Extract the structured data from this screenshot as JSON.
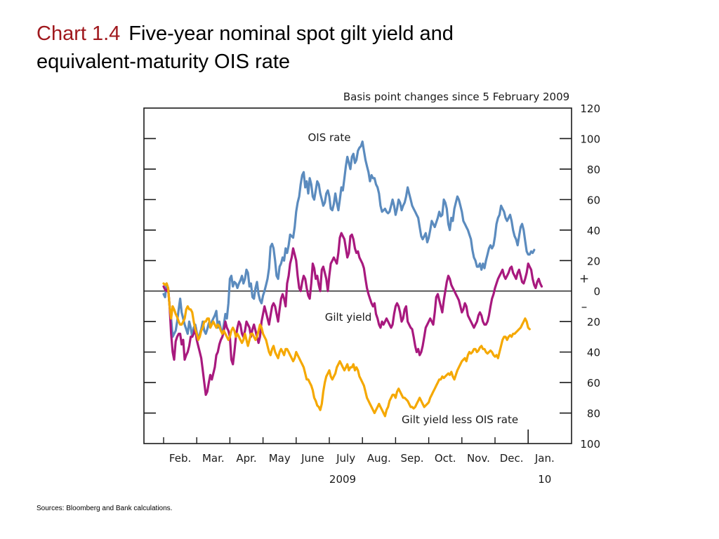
{
  "slide": {
    "chart_number": "Chart 1.4",
    "title_line1": "Five-year nominal spot gilt yield and",
    "title_line2": "equivalent-maturity OIS rate",
    "sources": "Sources:  Bloomberg and Bank calculations."
  },
  "colors": {
    "ois": "#5b8bbe",
    "gilt": "#a8197e",
    "spread": "#f5a800",
    "chart_number": "#a0191e"
  },
  "chart_data": {
    "type": "line",
    "units_label": "Basis point changes since 5 February 2009",
    "ylim": [
      -100,
      120
    ],
    "yticks": [
      120,
      100,
      80,
      60,
      40,
      20,
      0,
      -20,
      -40,
      -60,
      -80,
      -100
    ],
    "ytick_labels": [
      "120",
      "100",
      "80",
      "60",
      "40",
      "20",
      "0",
      "20",
      "40",
      "60",
      "80",
      "100"
    ],
    "sign_labels": {
      "plus": "+",
      "minus": "–"
    },
    "months": [
      "Feb.",
      "Mar.",
      "Apr.",
      "May",
      "June",
      "July",
      "Aug.",
      "Sep.",
      "Oct.",
      "Nov.",
      "Dec.",
      "Jan."
    ],
    "year_labels": [
      "2009",
      "10"
    ],
    "x_values": "trading day index; 0 = 5 February 2009, 22 days per month",
    "series": [
      {
        "name": "OIS rate",
        "key": "ois",
        "values": [
          -2,
          -4,
          5,
          2,
          -10,
          -18,
          -30,
          -28,
          -26,
          -20,
          -12,
          -5,
          -14,
          -18,
          -22,
          -25,
          -28,
          -20,
          -24,
          -30,
          -24,
          -22,
          -27,
          -32,
          -28,
          -25,
          -20,
          -26,
          -28,
          -25,
          -21,
          -24,
          -20,
          -18,
          -16,
          -13,
          -24,
          -20,
          -25,
          -28,
          -22,
          -15,
          -18,
          -8,
          8,
          10,
          3,
          6,
          5,
          2,
          5,
          7,
          10,
          5,
          8,
          14,
          12,
          3,
          5,
          -4,
          -5,
          2,
          6,
          -2,
          -6,
          -8,
          -3,
          0,
          4,
          8,
          15,
          29,
          31,
          28,
          20,
          10,
          8,
          16,
          18,
          22,
          20,
          28,
          25,
          30,
          37,
          36,
          35,
          42,
          52,
          58,
          62,
          70,
          76,
          78,
          68,
          72,
          64,
          74,
          70,
          62,
          60,
          66,
          72,
          70,
          64,
          60,
          56,
          58,
          64,
          66,
          62,
          54,
          53,
          57,
          64,
          58,
          53,
          60,
          68,
          66,
          74,
          82,
          88,
          84,
          80,
          88,
          90,
          84,
          86,
          92,
          94,
          95,
          98,
          92,
          86,
          82,
          78,
          72,
          76,
          74,
          74,
          70,
          68,
          64,
          56,
          52,
          53,
          54,
          52,
          51,
          52,
          56,
          60,
          56,
          50,
          54,
          60,
          58,
          53,
          56,
          58,
          62,
          68,
          64,
          60,
          56,
          54,
          52,
          50,
          48,
          42,
          36,
          34,
          36,
          38,
          32,
          35,
          40,
          46,
          44,
          42,
          45,
          48,
          52,
          49,
          50,
          60,
          58,
          54,
          44,
          40,
          48,
          46,
          54,
          58,
          62,
          60,
          56,
          52,
          46,
          44,
          42,
          40,
          37,
          34,
          27,
          22,
          20,
          16,
          16,
          18,
          14,
          18,
          15,
          20,
          24,
          28,
          30,
          28,
          30,
          36,
          44,
          48,
          50,
          56,
          54,
          52,
          48,
          46,
          48,
          50,
          46,
          40,
          36,
          34,
          30,
          36,
          42,
          44,
          40,
          33,
          26,
          24,
          24,
          26,
          25,
          27
        ]
      },
      {
        "name": "Gilt yield",
        "key": "gilt",
        "values": [
          3,
          1,
          0,
          2,
          -10,
          -28,
          -40,
          -45,
          -33,
          -30,
          -28,
          -28,
          -35,
          -32,
          -45,
          -42,
          -40,
          -36,
          -30,
          -30,
          -28,
          -24,
          -32,
          -36,
          -40,
          -44,
          -52,
          -60,
          -68,
          -66,
          -60,
          -55,
          -58,
          -54,
          -50,
          -42,
          -40,
          -35,
          -32,
          -30,
          -26,
          -20,
          -24,
          -26,
          -30,
          -45,
          -48,
          -40,
          -30,
          -24,
          -20,
          -22,
          -28,
          -30,
          -26,
          -20,
          -22,
          -24,
          -30,
          -25,
          -22,
          -26,
          -30,
          -34,
          -30,
          -20,
          -15,
          -10,
          -14,
          -18,
          -22,
          -16,
          -10,
          -8,
          -10,
          -15,
          -20,
          -12,
          -5,
          -2,
          -5,
          -10,
          5,
          10,
          18,
          22,
          28,
          24,
          20,
          10,
          2,
          0,
          6,
          10,
          8,
          2,
          -3,
          -5,
          5,
          18,
          15,
          8,
          10,
          4,
          0,
          14,
          16,
          12,
          8,
          0,
          10,
          18,
          20,
          22,
          20,
          18,
          25,
          35,
          38,
          36,
          34,
          28,
          22,
          25,
          36,
          37,
          34,
          28,
          25,
          26,
          22,
          20,
          18,
          15,
          8,
          2,
          -2,
          -5,
          -8,
          -10,
          -8,
          -15,
          -18,
          -22,
          -24,
          -20,
          -22,
          -20,
          -18,
          -20,
          -22,
          -24,
          -22,
          -15,
          -10,
          -8,
          -10,
          -14,
          -20,
          -18,
          -12,
          -10,
          -20,
          -22,
          -24,
          -25,
          -30,
          -36,
          -40,
          -38,
          -42,
          -40,
          -36,
          -30,
          -24,
          -22,
          -20,
          -18,
          -20,
          -22,
          -14,
          -4,
          -2,
          -6,
          -10,
          -14,
          -6,
          0,
          6,
          10,
          8,
          4,
          2,
          0,
          -2,
          -4,
          -6,
          -10,
          -14,
          -12,
          -8,
          -10,
          -16,
          -18,
          -20,
          -22,
          -24,
          -22,
          -20,
          -16,
          -14,
          -16,
          -20,
          -22,
          -22,
          -20,
          -16,
          -10,
          -5,
          -2,
          2,
          5,
          8,
          10,
          12,
          14,
          10,
          8,
          10,
          12,
          15,
          16,
          12,
          10,
          8,
          12,
          14,
          10,
          6,
          5,
          8,
          12,
          18,
          16,
          14,
          8,
          4,
          2,
          6,
          8,
          5,
          3
        ]
      },
      {
        "name": "Gilt yield less OIS rate",
        "key": "spread",
        "values": [
          5,
          4,
          5,
          2,
          -10,
          -18,
          -10,
          -12,
          -15,
          -17,
          -20,
          -22,
          -22,
          -20,
          -18,
          -12,
          -10,
          -12,
          -12,
          -14,
          -20,
          -25,
          -28,
          -32,
          -30,
          -26,
          -24,
          -20,
          -20,
          -18,
          -18,
          -24,
          -22,
          -20,
          -22,
          -24,
          -22,
          -23,
          -26,
          -28,
          -26,
          -28,
          -30,
          -32,
          -30,
          -26,
          -24,
          -26,
          -30,
          -28,
          -30,
          -32,
          -34,
          -32,
          -28,
          -32,
          -36,
          -32,
          -28,
          -28,
          -30,
          -32,
          -30,
          -26,
          -22,
          -24,
          -28,
          -30,
          -32,
          -36,
          -40,
          -42,
          -38,
          -36,
          -40,
          -42,
          -44,
          -40,
          -38,
          -40,
          -42,
          -38,
          -38,
          -40,
          -42,
          -44,
          -46,
          -44,
          -40,
          -42,
          -44,
          -46,
          -48,
          -50,
          -54,
          -58,
          -58,
          -60,
          -62,
          -65,
          -70,
          -72,
          -75,
          -76,
          -78,
          -74,
          -66,
          -60,
          -56,
          -54,
          -52,
          -56,
          -58,
          -56,
          -54,
          -50,
          -48,
          -46,
          -48,
          -50,
          -52,
          -50,
          -48,
          -52,
          -50,
          -50,
          -48,
          -52,
          -50,
          -52,
          -56,
          -58,
          -60,
          -62,
          -66,
          -70,
          -72,
          -74,
          -76,
          -78,
          -80,
          -78,
          -76,
          -74,
          -76,
          -78,
          -80,
          -82,
          -78,
          -76,
          -72,
          -70,
          -68,
          -68,
          -70,
          -66,
          -64,
          -66,
          -68,
          -70,
          -70,
          -71,
          -72,
          -74,
          -76,
          -76,
          -77,
          -76,
          -74,
          -72,
          -70,
          -72,
          -74,
          -76,
          -75,
          -74,
          -73,
          -70,
          -68,
          -66,
          -64,
          -62,
          -60,
          -58,
          -58,
          -56,
          -57,
          -56,
          -55,
          -54,
          -55,
          -53,
          -56,
          -58,
          -55,
          -52,
          -50,
          -48,
          -46,
          -45,
          -44,
          -46,
          -42,
          -40,
          -41,
          -40,
          -38,
          -38,
          -40,
          -39,
          -37,
          -36,
          -38,
          -38,
          -40,
          -41,
          -40,
          -39,
          -40,
          -42,
          -43,
          -42,
          -44,
          -40,
          -36,
          -32,
          -30,
          -30,
          -32,
          -30,
          -29,
          -30,
          -28,
          -28,
          -27,
          -26,
          -25,
          -24,
          -22,
          -20,
          -18,
          -20,
          -24,
          -25
        ]
      }
    ],
    "series_labels": [
      {
        "series": "ois",
        "text": "OIS rate"
      },
      {
        "series": "gilt",
        "text": "Gilt yield"
      },
      {
        "series": "spread",
        "text": "Gilt yield less OIS rate"
      }
    ],
    "grid": false,
    "legend": "inline labels"
  }
}
